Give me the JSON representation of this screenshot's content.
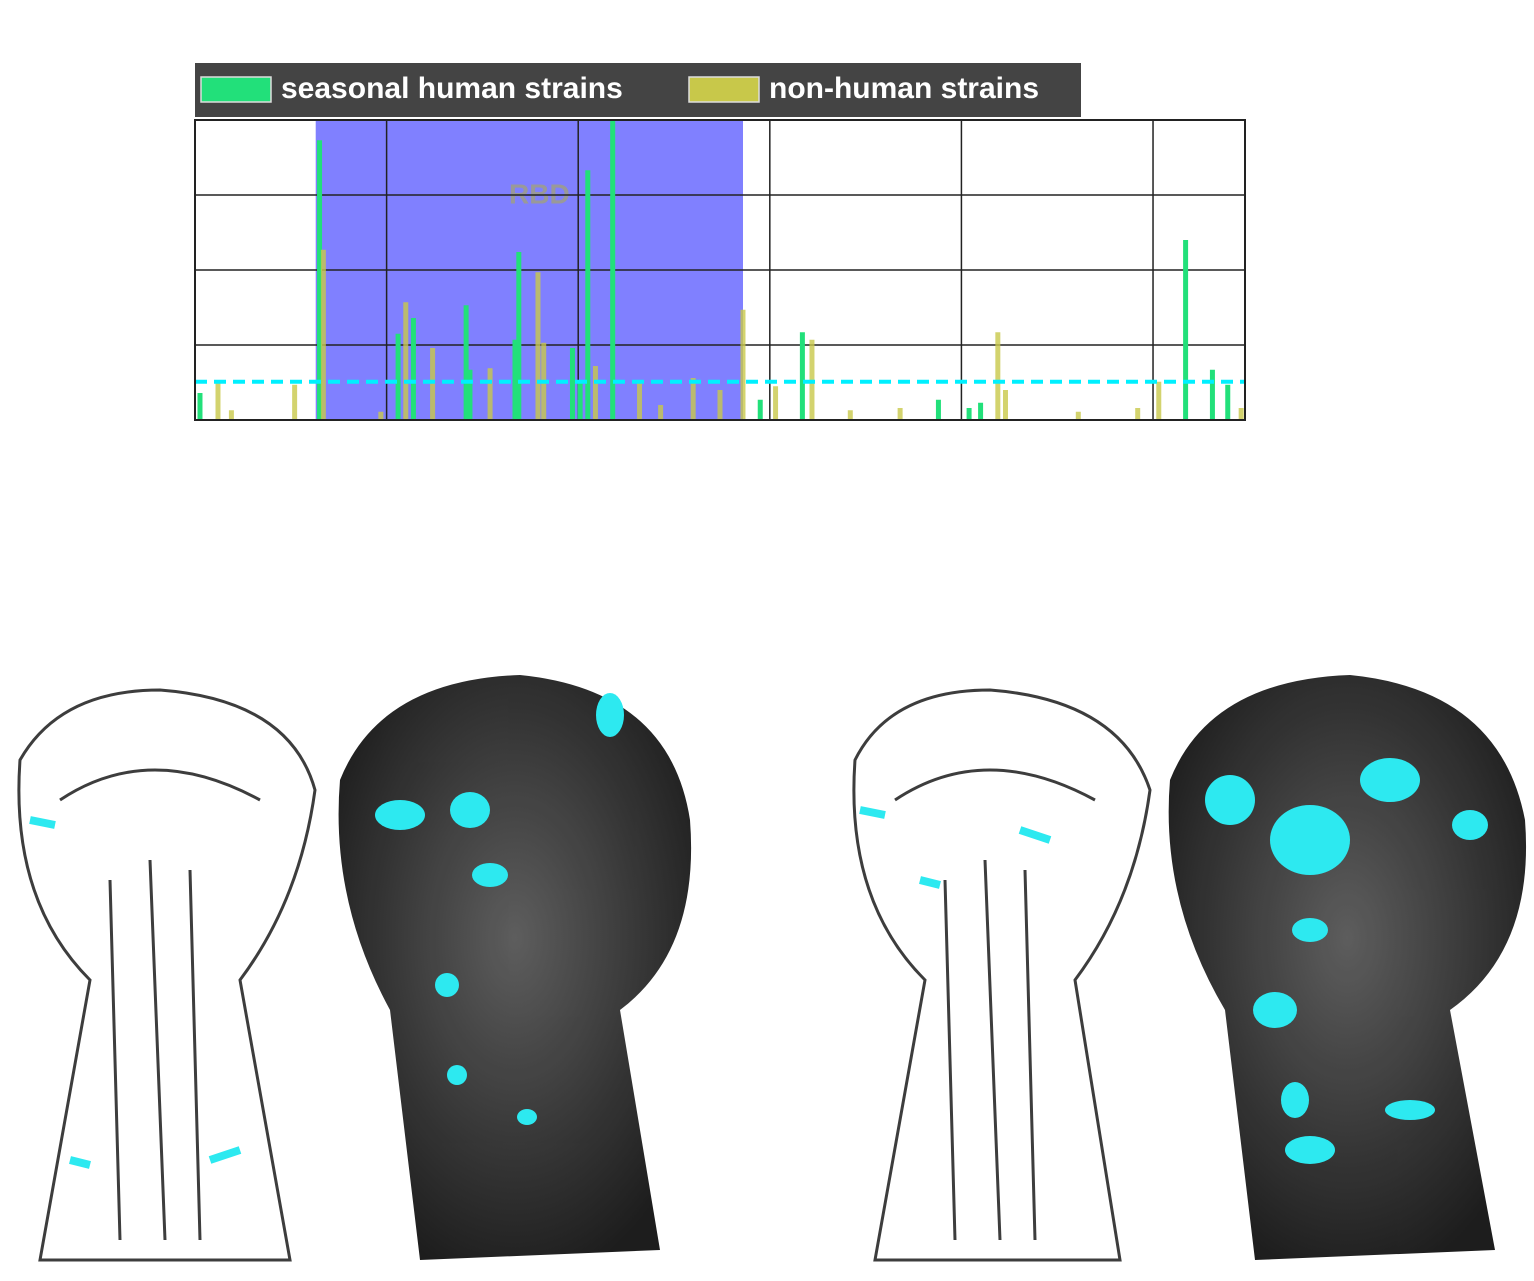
{
  "chart_data": {
    "type": "bar",
    "legend_labels_from_series": true,
    "xlim": [
      0,
      548
    ],
    "xticks": [
      100,
      200,
      300,
      400,
      500
    ],
    "ylim": [
      0,
      4
    ],
    "yticks": [
      1,
      2,
      3
    ],
    "grid": true,
    "region": {
      "text": "RBD",
      "range": [
        63,
        286
      ],
      "color": "#8080ff"
    },
    "reference_line": {
      "value": 0.51,
      "color": "#00f0ff"
    },
    "series": [
      {
        "name": "seasonal human strains",
        "color": "#22e07a",
        "opacity": 1,
        "x": [
          2.6,
          65,
          106,
          114,
          141.5,
          143.5,
          167,
          169,
          197,
          201,
          205,
          218,
          295,
          317,
          388,
          404,
          410,
          517,
          531,
          539
        ],
        "values": [
          0.36,
          3.73,
          1.15,
          1.36,
          1.53,
          0.67,
          1.07,
          2.24,
          0.96,
          0.53,
          3.33,
          4.0,
          0.27,
          1.17,
          0.27,
          0.16,
          0.23,
          2.4,
          0.67,
          0.47
        ]
      },
      {
        "name": "non-human strains",
        "color": "#c8c84a",
        "opacity": 0.8,
        "x": [
          12,
          19,
          52,
          67,
          97,
          110,
          124,
          154,
          179,
          182,
          209,
          232,
          243,
          260,
          274,
          286,
          303,
          322,
          342,
          368,
          419,
          423,
          461,
          492,
          503,
          546
        ],
        "values": [
          0.49,
          0.13,
          0.47,
          2.27,
          0.11,
          1.57,
          0.96,
          0.69,
          1.97,
          1.03,
          0.72,
          0.51,
          0.2,
          0.56,
          0.4,
          1.47,
          0.45,
          1.07,
          0.13,
          0.16,
          1.17,
          0.4,
          0.11,
          0.16,
          0.51,
          0.16
        ]
      }
    ]
  }
}
